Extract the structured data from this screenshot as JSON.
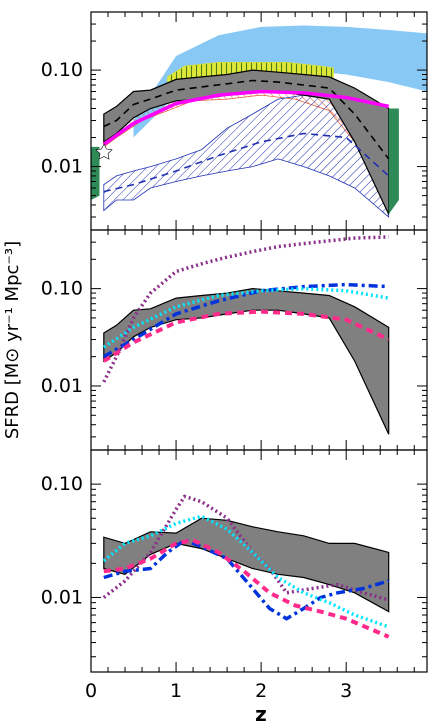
{
  "chart_data": [
    {
      "type": "line",
      "panel": "top",
      "title": "",
      "xlabel": "z",
      "ylabel": "SFRD [M⊙ yr⁻¹ Mpc⁻³]",
      "yscale": "log",
      "xlim": [
        0,
        3.95
      ],
      "ylim": [
        0.0022,
        0.4
      ],
      "x_ticks": [
        "0",
        "1",
        "2",
        "3"
      ],
      "y_ticks": [
        "0.01",
        "0.10"
      ],
      "bands": [
        {
          "color": "#87c8f5",
          "x": [
            0.5,
            1,
            1.5,
            2,
            2.5,
            3,
            3.5,
            3.95
          ],
          "lower": [
            0.02,
            0.055,
            0.09,
            0.11,
            0.1,
            0.09,
            0.075,
            0.06
          ],
          "upper": [
            0.03,
            0.14,
            0.23,
            0.28,
            0.29,
            0.28,
            0.26,
            0.24
          ]
        },
        {
          "color": "#d8e030",
          "x": [
            0.9,
            1.1,
            1.5,
            1.9,
            2.3,
            2.7,
            2.85
          ],
          "lower": [
            0.065,
            0.08,
            0.085,
            0.082,
            0.075,
            0.07,
            0.07
          ],
          "upper": [
            0.085,
            0.11,
            0.12,
            0.12,
            0.12,
            0.11,
            0.105
          ]
        },
        {
          "color": "#e06040",
          "x": [
            0.15,
            0.3,
            0.6,
            0.9,
            1.2,
            1.6,
            2,
            2.4,
            2.8,
            3.1,
            3.5
          ],
          "lower": [
            0.016,
            0.02,
            0.03,
            0.038,
            0.048,
            0.05,
            0.055,
            0.05,
            0.038,
            0.018,
            0.005
          ],
          "upper": [
            0.025,
            0.033,
            0.045,
            0.058,
            0.07,
            0.07,
            0.075,
            0.072,
            0.062,
            0.035,
            0.03
          ]
        },
        {
          "color": "#2030b0",
          "x": [
            0.15,
            0.3,
            0.5,
            0.7,
            1,
            1.3,
            1.6,
            1.9,
            2.2,
            2.5,
            2.8,
            3.1,
            3.5
          ],
          "lower": [
            0.0035,
            0.0045,
            0.0045,
            0.006,
            0.007,
            0.008,
            0.009,
            0.01,
            0.012,
            0.01,
            0.008,
            0.006,
            0.003
          ],
          "upper": [
            0.0065,
            0.008,
            0.009,
            0.01,
            0.012,
            0.015,
            0.025,
            0.035,
            0.05,
            0.055,
            0.05,
            0.035,
            0.02
          ]
        },
        {
          "color": "#808080",
          "x": [
            0.15,
            0.3,
            0.5,
            0.7,
            1,
            1.3,
            1.6,
            1.9,
            2.2,
            2.5,
            2.8,
            3.1,
            3.5
          ],
          "lower": [
            0.018,
            0.022,
            0.032,
            0.04,
            0.048,
            0.05,
            0.055,
            0.06,
            0.06,
            0.055,
            0.05,
            0.018,
            0.0032
          ],
          "upper": [
            0.035,
            0.042,
            0.06,
            0.062,
            0.08,
            0.085,
            0.09,
            0.1,
            0.095,
            0.09,
            0.085,
            0.065,
            0.04
          ]
        },
        {
          "color": "#2e8b57",
          "x": [
            0.0,
            0.1
          ],
          "lower": [
            0.0045,
            0.005
          ],
          "upper": [
            0.016,
            0.016
          ]
        },
        {
          "color": "#2e8b57",
          "x": [
            3.5,
            3.62
          ],
          "lower": [
            0.0032,
            0.0045
          ],
          "upper": [
            0.04,
            0.04
          ]
        }
      ],
      "series": [
        {
          "color": "#000000",
          "style": "dashed",
          "x": [
            0.15,
            0.3,
            0.5,
            0.7,
            1,
            1.3,
            1.6,
            1.9,
            2.2,
            2.5,
            2.8,
            3.1,
            3.5
          ],
          "values": [
            0.026,
            0.03,
            0.044,
            0.05,
            0.062,
            0.067,
            0.072,
            0.078,
            0.075,
            0.07,
            0.065,
            0.035,
            0.012
          ]
        },
        {
          "color": "#ff00ff",
          "style": "solid",
          "x": [
            0.15,
            0.5,
            1,
            1.5,
            2,
            2.5,
            3,
            3.5
          ],
          "values": [
            0.017,
            0.028,
            0.045,
            0.055,
            0.06,
            0.058,
            0.052,
            0.042
          ]
        },
        {
          "color": "#2030b0",
          "style": "dashed",
          "x": [
            0.15,
            0.5,
            1,
            1.5,
            2,
            2.5,
            3,
            3.5
          ],
          "values": [
            0.0055,
            0.0065,
            0.009,
            0.013,
            0.018,
            0.022,
            0.02,
            0.008
          ]
        }
      ]
    },
    {
      "type": "line",
      "panel": "middle",
      "yscale": "log",
      "xlim": [
        0,
        3.95
      ],
      "ylim": [
        0.0022,
        0.4
      ],
      "x_ticks": [
        "0",
        "1",
        "2",
        "3"
      ],
      "y_ticks": [
        "0.01",
        "0.10"
      ],
      "bands": [
        {
          "color": "#808080",
          "x": [
            0.15,
            0.3,
            0.5,
            0.7,
            1,
            1.3,
            1.6,
            1.9,
            2.2,
            2.5,
            2.8,
            3.1,
            3.5
          ],
          "lower": [
            0.018,
            0.022,
            0.032,
            0.04,
            0.048,
            0.05,
            0.055,
            0.06,
            0.06,
            0.055,
            0.05,
            0.018,
            0.0032
          ],
          "upper": [
            0.035,
            0.042,
            0.06,
            0.062,
            0.08,
            0.085,
            0.09,
            0.1,
            0.095,
            0.09,
            0.085,
            0.065,
            0.04
          ]
        }
      ],
      "series": [
        {
          "color": "#8b2f8b",
          "style": "dotted",
          "x": [
            0.15,
            0.3,
            0.5,
            0.7,
            1,
            1.3,
            1.6,
            1.9,
            2.2,
            2.5,
            2.8,
            3.1,
            3.5
          ],
          "values": [
            0.011,
            0.02,
            0.05,
            0.09,
            0.15,
            0.18,
            0.21,
            0.24,
            0.27,
            0.29,
            0.31,
            0.33,
            0.34
          ]
        },
        {
          "color": "#0033dd",
          "style": "dash-dot",
          "x": [
            0.15,
            0.5,
            1,
            1.5,
            2,
            2.5,
            3,
            3.5
          ],
          "values": [
            0.02,
            0.03,
            0.055,
            0.075,
            0.095,
            0.105,
            0.11,
            0.105
          ]
        },
        {
          "color": "#00e5ff",
          "style": "dotted",
          "x": [
            0.15,
            0.5,
            1,
            1.5,
            2,
            2.5,
            3,
            3.5
          ],
          "values": [
            0.025,
            0.04,
            0.065,
            0.085,
            0.095,
            0.1,
            0.095,
            0.08
          ]
        },
        {
          "color": "#ff2a8a",
          "style": "dashed",
          "x": [
            0.15,
            0.5,
            1,
            1.5,
            2,
            2.5,
            3,
            3.5
          ],
          "values": [
            0.018,
            0.028,
            0.045,
            0.055,
            0.058,
            0.055,
            0.048,
            0.03
          ]
        }
      ]
    },
    {
      "type": "line",
      "panel": "bottom",
      "yscale": "log",
      "xlim": [
        0,
        3.95
      ],
      "ylim": [
        0.0022,
        0.2
      ],
      "x_ticks": [
        "0",
        "1",
        "2",
        "3"
      ],
      "y_ticks": [
        "0.01",
        "0.10"
      ],
      "bands": [
        {
          "color": "#808080",
          "x": [
            0.15,
            0.4,
            0.7,
            1,
            1.3,
            1.6,
            1.9,
            2.2,
            2.5,
            2.8,
            3.1,
            3.5
          ],
          "lower": [
            0.018,
            0.016,
            0.024,
            0.03,
            0.027,
            0.022,
            0.018,
            0.016,
            0.015,
            0.013,
            0.011,
            0.0075
          ],
          "upper": [
            0.034,
            0.03,
            0.038,
            0.037,
            0.05,
            0.048,
            0.042,
            0.038,
            0.035,
            0.03,
            0.03,
            0.025
          ]
        }
      ],
      "series": [
        {
          "color": "#8b2f8b",
          "style": "dotted",
          "x": [
            0.15,
            0.4,
            0.7,
            1,
            1.1,
            1.3,
            1.6,
            1.9,
            2.1,
            2.3,
            2.6,
            2.9,
            3.2,
            3.5
          ],
          "values": [
            0.01,
            0.014,
            0.025,
            0.06,
            0.078,
            0.07,
            0.05,
            0.025,
            0.018,
            0.011,
            0.012,
            0.013,
            0.011,
            0.0095
          ]
        },
        {
          "color": "#0033dd",
          "style": "dash-dot",
          "x": [
            0.15,
            0.4,
            0.7,
            0.9,
            1.1,
            1.3,
            1.6,
            1.9,
            2.1,
            2.3,
            2.5,
            2.7,
            2.9,
            3.2,
            3.5
          ],
          "values": [
            0.015,
            0.017,
            0.018,
            0.025,
            0.032,
            0.028,
            0.022,
            0.012,
            0.008,
            0.0065,
            0.008,
            0.01,
            0.011,
            0.012,
            0.014
          ]
        },
        {
          "color": "#00e5ff",
          "style": "dotted",
          "x": [
            0.15,
            0.4,
            0.7,
            1,
            1.3,
            1.6,
            1.9,
            2.2,
            2.5,
            2.8,
            3.1,
            3.5
          ],
          "values": [
            0.021,
            0.03,
            0.035,
            0.045,
            0.052,
            0.04,
            0.025,
            0.015,
            0.011,
            0.009,
            0.007,
            0.0055
          ]
        },
        {
          "color": "#ff2a8a",
          "style": "dashed",
          "x": [
            0.15,
            0.4,
            0.7,
            1,
            1.2,
            1.5,
            1.8,
            2.1,
            2.4,
            2.7,
            3,
            3.5
          ],
          "values": [
            0.017,
            0.018,
            0.022,
            0.03,
            0.032,
            0.025,
            0.017,
            0.011,
            0.0085,
            0.0075,
            0.0065,
            0.0045
          ]
        }
      ]
    }
  ]
}
